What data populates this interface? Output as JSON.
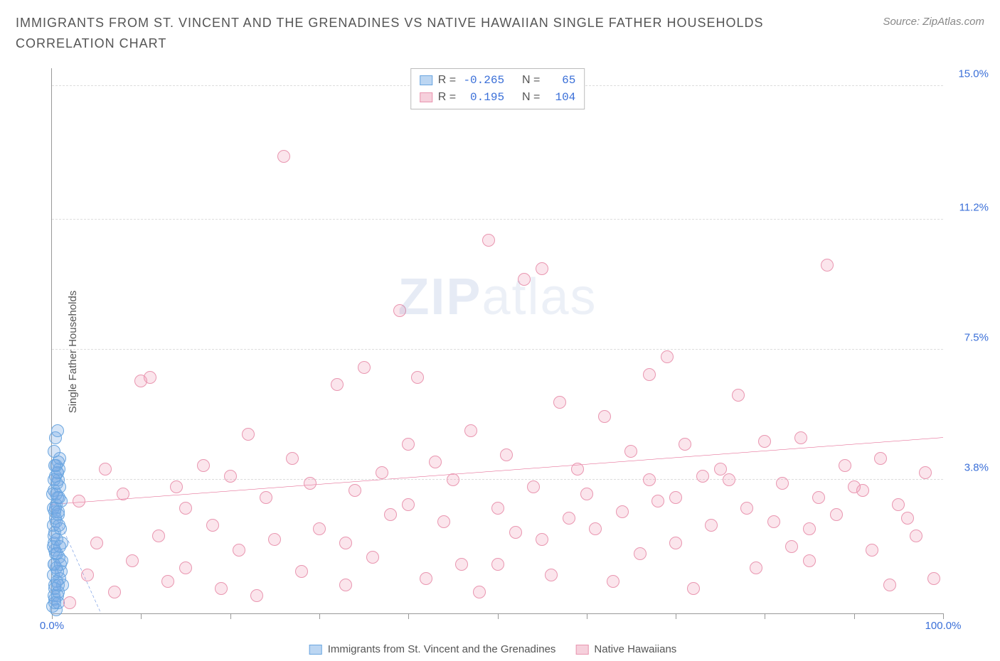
{
  "title": "IMMIGRANTS FROM ST. VINCENT AND THE GRENADINES VS NATIVE HAWAIIAN SINGLE FATHER HOUSEHOLDS CORRELATION CHART",
  "source": "Source: ZipAtlas.com",
  "ylabel": "Single Father Households",
  "watermark_a": "ZIP",
  "watermark_b": "atlas",
  "chart": {
    "type": "scatter",
    "xlim": [
      0,
      100
    ],
    "ylim": [
      0,
      15.5
    ],
    "background_color": "#ffffff",
    "grid_color": "#dddddd",
    "axis_color": "#999999",
    "yticks": [
      {
        "v": 3.8,
        "label": "3.8%"
      },
      {
        "v": 7.5,
        "label": "7.5%"
      },
      {
        "v": 11.2,
        "label": "11.2%"
      },
      {
        "v": 15.0,
        "label": "15.0%"
      }
    ],
    "xtick_positions": [
      0,
      10,
      20,
      30,
      40,
      50,
      60,
      70,
      80,
      90,
      100
    ],
    "xtick_labels": {
      "0": "0.0%",
      "100": "100.0%"
    },
    "point_radius": 9,
    "point_stroke_width": 1.5,
    "trend_width": 2,
    "ylabel_color": "#3a6fd8",
    "xlabel0_color": "#3a6fd8",
    "xlabel100_color": "#3a6fd8"
  },
  "series": [
    {
      "name": "Immigrants from St. Vincent and the Grenadines",
      "fill": "rgba(120,170,230,0.30)",
      "stroke": "#6aa6e0",
      "swatch_fill": "#bcd6f2",
      "swatch_stroke": "#6aa6e0",
      "R": "-0.265",
      "N": "65",
      "trend": {
        "x1": 0,
        "y1": 3.1,
        "x2": 5.5,
        "y2": 0,
        "color": "#3a6fd8",
        "dash": "4 3"
      },
      "points": [
        [
          0.1,
          0.2
        ],
        [
          0.2,
          0.5
        ],
        [
          0.3,
          0.8
        ],
        [
          0.15,
          1.1
        ],
        [
          0.25,
          1.4
        ],
        [
          0.4,
          1.7
        ],
        [
          0.2,
          2.0
        ],
        [
          0.35,
          2.3
        ],
        [
          0.5,
          2.6
        ],
        [
          0.3,
          2.9
        ],
        [
          0.45,
          3.1
        ],
        [
          0.6,
          3.3
        ],
        [
          0.25,
          3.5
        ],
        [
          0.55,
          3.7
        ],
        [
          0.7,
          3.8
        ],
        [
          0.4,
          3.9
        ],
        [
          0.65,
          4.0
        ],
        [
          0.8,
          4.1
        ],
        [
          0.5,
          4.2
        ],
        [
          0.75,
          4.3
        ],
        [
          0.9,
          4.4
        ],
        [
          0.6,
          4.0
        ],
        [
          0.85,
          3.6
        ],
        [
          1.0,
          3.2
        ],
        [
          0.7,
          2.8
        ],
        [
          0.95,
          2.4
        ],
        [
          1.1,
          2.0
        ],
        [
          0.8,
          1.6
        ],
        [
          1.05,
          1.2
        ],
        [
          1.2,
          0.8
        ],
        [
          0.3,
          0.4
        ],
        [
          0.5,
          0.1
        ],
        [
          0.7,
          0.6
        ],
        [
          0.9,
          1.0
        ],
        [
          1.1,
          1.5
        ],
        [
          0.4,
          5.0
        ],
        [
          0.6,
          5.2
        ],
        [
          0.2,
          4.6
        ],
        [
          0.15,
          3.0
        ],
        [
          0.25,
          2.2
        ],
        [
          0.35,
          1.8
        ],
        [
          0.45,
          1.3
        ],
        [
          0.55,
          0.9
        ],
        [
          0.65,
          0.5
        ],
        [
          0.75,
          0.3
        ],
        [
          0.1,
          3.4
        ],
        [
          0.2,
          3.8
        ],
        [
          0.3,
          4.2
        ],
        [
          0.12,
          2.5
        ],
        [
          0.18,
          1.9
        ],
        [
          0.22,
          1.4
        ],
        [
          0.28,
          0.7
        ],
        [
          0.32,
          0.3
        ],
        [
          0.38,
          2.7
        ],
        [
          0.42,
          3.0
        ],
        [
          0.48,
          3.4
        ],
        [
          0.52,
          2.1
        ],
        [
          0.58,
          1.7
        ],
        [
          0.62,
          1.2
        ],
        [
          0.68,
          0.8
        ],
        [
          0.72,
          2.9
        ],
        [
          0.78,
          3.3
        ],
        [
          0.82,
          2.5
        ],
        [
          0.88,
          1.9
        ],
        [
          0.92,
          1.4
        ]
      ]
    },
    {
      "name": "Native Hawaiians",
      "fill": "rgba(240,150,180,0.25)",
      "stroke": "#e996b0",
      "swatch_fill": "#f6d0dc",
      "swatch_stroke": "#e996b0",
      "R": "0.195",
      "N": "104",
      "trend": {
        "x1": 0,
        "y1": 3.1,
        "x2": 100,
        "y2": 5.0,
        "color": "#e05080",
        "dash": null
      },
      "points": [
        [
          2,
          0.3
        ],
        [
          3,
          3.2
        ],
        [
          4,
          1.1
        ],
        [
          5,
          2.0
        ],
        [
          6,
          4.1
        ],
        [
          7,
          0.6
        ],
        [
          8,
          3.4
        ],
        [
          9,
          1.5
        ],
        [
          10,
          6.6
        ],
        [
          11,
          6.7
        ],
        [
          12,
          2.2
        ],
        [
          13,
          0.9
        ],
        [
          14,
          3.6
        ],
        [
          15,
          1.3
        ],
        [
          17,
          4.2
        ],
        [
          18,
          2.5
        ],
        [
          19,
          0.7
        ],
        [
          20,
          3.9
        ],
        [
          21,
          1.8
        ],
        [
          22,
          5.1
        ],
        [
          23,
          0.5
        ],
        [
          24,
          3.3
        ],
        [
          25,
          2.1
        ],
        [
          26,
          13.0
        ],
        [
          27,
          4.4
        ],
        [
          28,
          1.2
        ],
        [
          29,
          3.7
        ],
        [
          30,
          2.4
        ],
        [
          32,
          6.5
        ],
        [
          33,
          0.8
        ],
        [
          34,
          3.5
        ],
        [
          35,
          7.0
        ],
        [
          36,
          1.6
        ],
        [
          37,
          4.0
        ],
        [
          38,
          2.8
        ],
        [
          39,
          8.6
        ],
        [
          40,
          3.1
        ],
        [
          41,
          6.7
        ],
        [
          42,
          1.0
        ],
        [
          43,
          4.3
        ],
        [
          44,
          2.6
        ],
        [
          45,
          3.8
        ],
        [
          46,
          1.4
        ],
        [
          47,
          5.2
        ],
        [
          48,
          0.6
        ],
        [
          49,
          10.6
        ],
        [
          50,
          3.0
        ],
        [
          51,
          4.5
        ],
        [
          52,
          2.3
        ],
        [
          53,
          9.5
        ],
        [
          54,
          3.6
        ],
        [
          55,
          9.8
        ],
        [
          56,
          1.1
        ],
        [
          57,
          6.0
        ],
        [
          58,
          2.7
        ],
        [
          59,
          4.1
        ],
        [
          60,
          3.4
        ],
        [
          62,
          5.6
        ],
        [
          63,
          0.9
        ],
        [
          64,
          2.9
        ],
        [
          65,
          4.6
        ],
        [
          66,
          1.7
        ],
        [
          67,
          6.8
        ],
        [
          68,
          3.2
        ],
        [
          69,
          7.3
        ],
        [
          70,
          2.0
        ],
        [
          71,
          4.8
        ],
        [
          72,
          0.7
        ],
        [
          73,
          3.9
        ],
        [
          74,
          2.5
        ],
        [
          75,
          4.1
        ],
        [
          77,
          6.2
        ],
        [
          78,
          3.0
        ],
        [
          79,
          1.3
        ],
        [
          80,
          4.9
        ],
        [
          81,
          2.6
        ],
        [
          82,
          3.7
        ],
        [
          84,
          5.0
        ],
        [
          85,
          1.5
        ],
        [
          86,
          3.3
        ],
        [
          87,
          9.9
        ],
        [
          88,
          2.8
        ],
        [
          89,
          4.2
        ],
        [
          91,
          3.5
        ],
        [
          92,
          1.8
        ],
        [
          93,
          4.4
        ],
        [
          94,
          0.8
        ],
        [
          95,
          3.1
        ],
        [
          97,
          2.2
        ],
        [
          98,
          4.0
        ],
        [
          99,
          1.0
        ],
        [
          61,
          2.4
        ],
        [
          76,
          3.8
        ],
        [
          83,
          1.9
        ],
        [
          90,
          3.6
        ],
        [
          96,
          2.7
        ],
        [
          15,
          3.0
        ],
        [
          33,
          2.0
        ],
        [
          50,
          1.4
        ],
        [
          67,
          3.8
        ],
        [
          40,
          4.8
        ],
        [
          55,
          2.1
        ],
        [
          70,
          3.3
        ],
        [
          85,
          2.4
        ]
      ]
    }
  ],
  "legend_labels": {
    "R": "R =",
    "N": "N ="
  }
}
